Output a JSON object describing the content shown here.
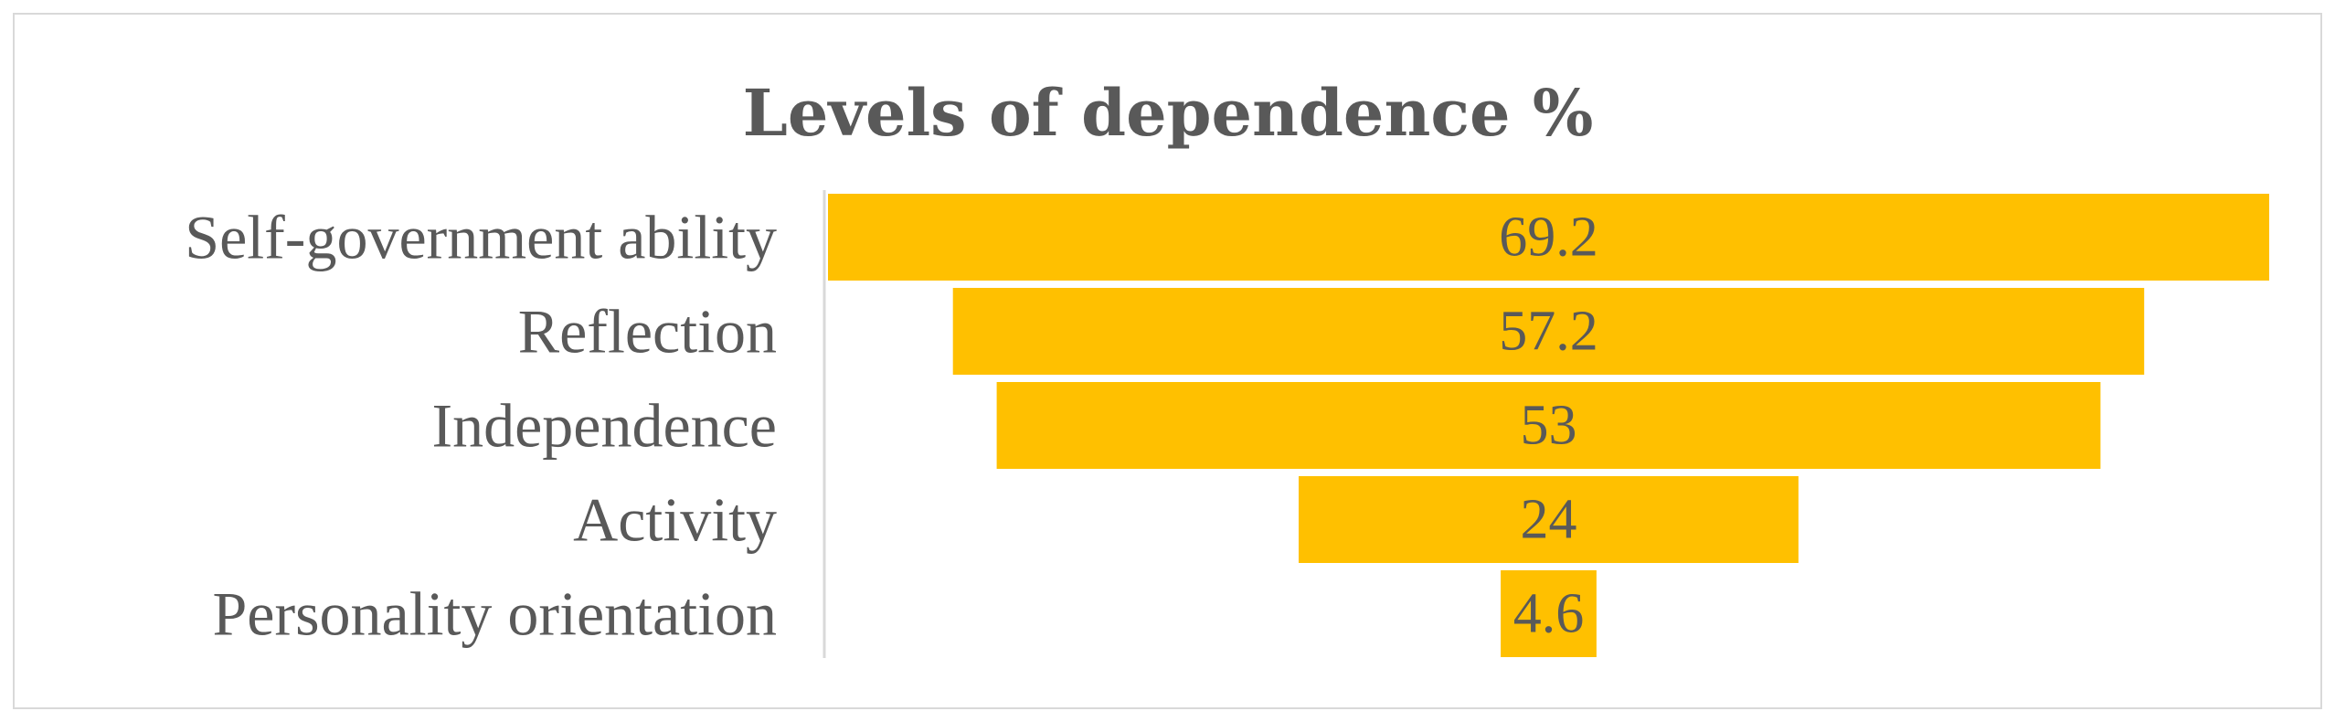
{
  "chart_data": {
    "type": "bar",
    "subtype": "funnel",
    "title": "Levels of dependence %",
    "categories": [
      "Self-government ability",
      "Reflection",
      "Independence",
      "Activity",
      "Personality orientation"
    ],
    "values": [
      69.2,
      57.2,
      53,
      24,
      4.6
    ],
    "value_labels": [
      "69.2",
      "57.2",
      "53",
      "24",
      "4.6"
    ],
    "xlim": [
      0,
      69.2
    ],
    "xlabel": "",
    "ylabel": "",
    "grid": false,
    "legend": "none",
    "bar_color": "#FFC000",
    "text_color": "#595959",
    "axis_color": "#d9d9d9"
  }
}
